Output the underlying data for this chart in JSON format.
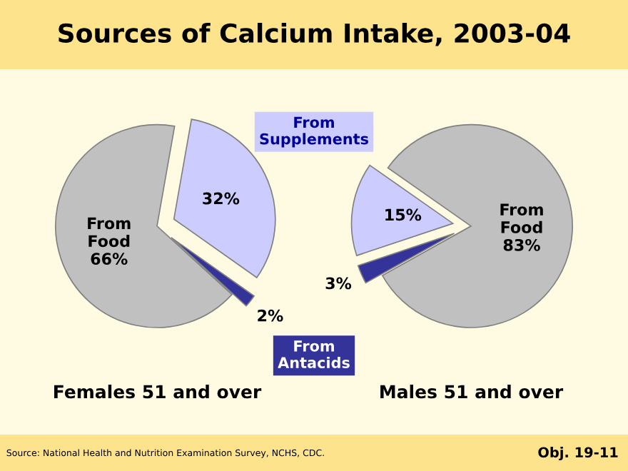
{
  "chart_data": [
    {
      "type": "pie",
      "title": "Sources of Calcium Intake, 2003-04",
      "subtitle": "Females 51 and over",
      "categories": [
        null,
        null,
        null
      ],
      "values": [
        66,
        32,
        2
      ],
      "colors": [
        "#c0c0c0",
        "#ccccff",
        "#333399"
      ],
      "value_labels": [
        "From\nFood\n66%",
        "32%",
        "2%"
      ],
      "annotations": [
        "From\nSupplements",
        "From\nAntacids",
        "Source: National Health and Nutrition Examination Survey, NCHS, CDC.",
        "Obj. 19-11"
      ]
    },
    {
      "type": "pie",
      "subtitle": "Males 51 and over",
      "categories": [
        null,
        null,
        null
      ],
      "values": [
        83,
        15,
        3
      ],
      "colors": [
        "#c0c0c0",
        "#ccccff",
        "#333399"
      ],
      "value_labels": [
        "From\nFood\n83%",
        "15%",
        "3%"
      ]
    }
  ]
}
